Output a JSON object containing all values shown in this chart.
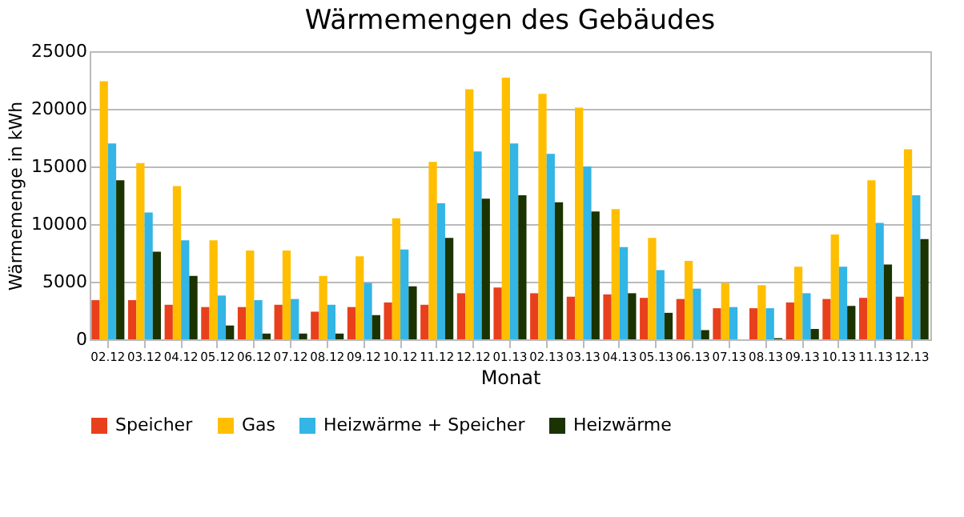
{
  "chart_data": {
    "type": "bar",
    "title": "Wärmemengen des Gebäudes",
    "xlabel": "Monat",
    "ylabel": "Wärmemenge in kWh",
    "categories": [
      "02.12",
      "03.12",
      "04.12",
      "05.12",
      "06.12",
      "07.12",
      "08.12",
      "09.12",
      "10.12",
      "11.12",
      "12.12",
      "01.13",
      "02.13",
      "03.13",
      "04.13",
      "05.13",
      "06.13",
      "07.13",
      "08.13",
      "09.13",
      "10.13",
      "11.13",
      "12.13"
    ],
    "series": [
      {
        "name": "Speicher",
        "color": "#e8401c",
        "values": [
          3400,
          3400,
          3000,
          2800,
          2800,
          3000,
          2400,
          2800,
          3200,
          3000,
          4000,
          4500,
          4000,
          3700,
          3900,
          3600,
          3500,
          2700,
          2700,
          3200,
          3500,
          3600,
          3700
        ]
      },
      {
        "name": "Gas",
        "color": "#ffbf00",
        "values": [
          22400,
          15300,
          13300,
          8600,
          7700,
          7700,
          5500,
          7200,
          10500,
          15400,
          21700,
          22700,
          21300,
          20100,
          11300,
          8800,
          6800,
          4900,
          4700,
          6300,
          9100,
          13800,
          16500
        ]
      },
      {
        "name": "Heizwärme + Speicher",
        "color": "#33b5e5",
        "values": [
          17000,
          11000,
          8600,
          3800,
          3400,
          3500,
          3000,
          4900,
          7800,
          11800,
          16300,
          17000,
          16100,
          15000,
          8000,
          6000,
          4400,
          2800,
          2700,
          4000,
          6300,
          10100,
          12500
        ]
      },
      {
        "name": "Heizwärme",
        "color": "#1a3300",
        "values": [
          13800,
          7600,
          5500,
          1200,
          500,
          500,
          500,
          2100,
          4600,
          8800,
          12200,
          12500,
          11900,
          11100,
          4000,
          2300,
          800,
          0,
          100,
          900,
          2900,
          6500,
          8700
        ]
      }
    ],
    "ylim": [
      0,
      25000
    ],
    "yticks": [
      0,
      5000,
      10000,
      15000,
      20000,
      25000
    ],
    "grid": "y",
    "legend": "bottom"
  }
}
